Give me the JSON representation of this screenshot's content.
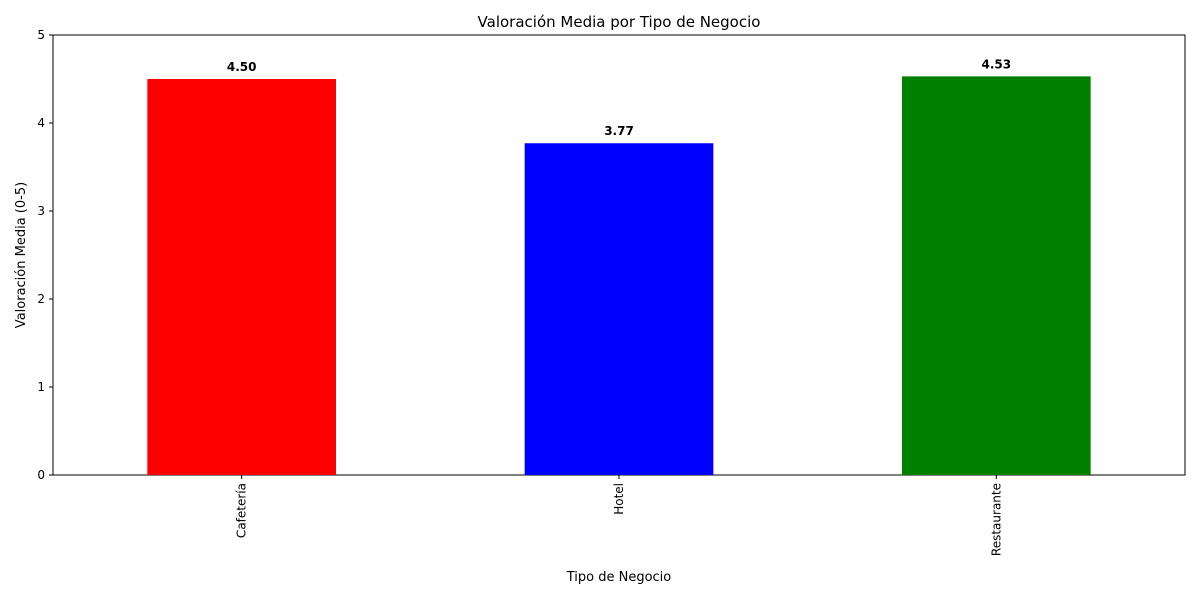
{
  "chart_data": {
    "type": "bar",
    "title": "Valoración Media por Tipo de Negocio",
    "xlabel": "Tipo de Negocio",
    "ylabel": "Valoración Media (0-5)",
    "categories": [
      "Cafetería",
      "Hotel",
      "Restaurante"
    ],
    "values": [
      4.5,
      3.77,
      4.53
    ],
    "value_labels": [
      "4.50",
      "3.77",
      "4.53"
    ],
    "colors": [
      "#ff0000",
      "#0000ff",
      "#008000"
    ],
    "ylim": [
      0,
      5
    ],
    "yticks": [
      0,
      1,
      2,
      3,
      4,
      5
    ],
    "grid": false,
    "xtick_rotation": "vertical"
  }
}
